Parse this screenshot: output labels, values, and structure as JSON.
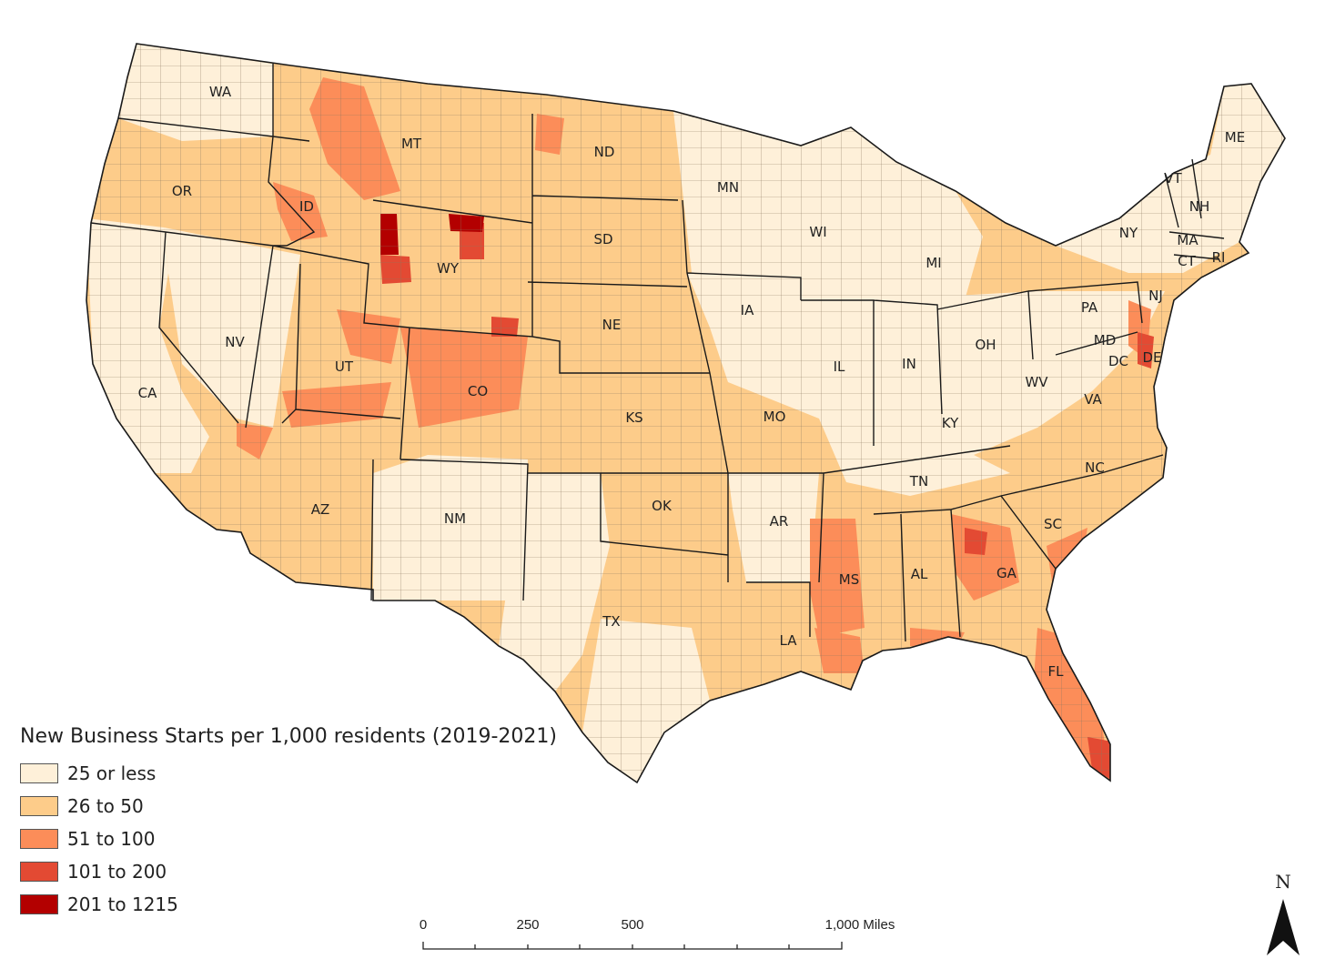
{
  "legend": {
    "title": "New Business Starts per 1,000 residents (2019-2021)",
    "classes": [
      {
        "label": "25 or less",
        "color": "#fef0d9"
      },
      {
        "label": "26 to 50",
        "color": "#fdcc8a"
      },
      {
        "label": "51 to 100",
        "color": "#fc8d59"
      },
      {
        "label": "101 to 200",
        "color": "#e34a33"
      },
      {
        "label": "201 to 1215",
        "color": "#b30000"
      }
    ]
  },
  "states": [
    "WA",
    "OR",
    "CA",
    "ID",
    "NV",
    "MT",
    "WY",
    "UT",
    "AZ",
    "CO",
    "NM",
    "ND",
    "SD",
    "NE",
    "KS",
    "OK",
    "TX",
    "MN",
    "IA",
    "MO",
    "AR",
    "LA",
    "WI",
    "IL",
    "MI",
    "IN",
    "OH",
    "KY",
    "TN",
    "MS",
    "AL",
    "GA",
    "FL",
    "SC",
    "NC",
    "VA",
    "WV",
    "PA",
    "NY",
    "MD",
    "DE",
    "DC",
    "NJ",
    "CT",
    "RI",
    "MA",
    "VT",
    "NH",
    "ME"
  ],
  "scale_bar": {
    "ticks": [
      "0",
      "250",
      "500",
      "1,000 Miles"
    ]
  },
  "north_arrow": {
    "letter": "N"
  },
  "colors": {
    "border": "#1a1a1a",
    "county_line": "#8a7760",
    "background": "#ffffff"
  }
}
